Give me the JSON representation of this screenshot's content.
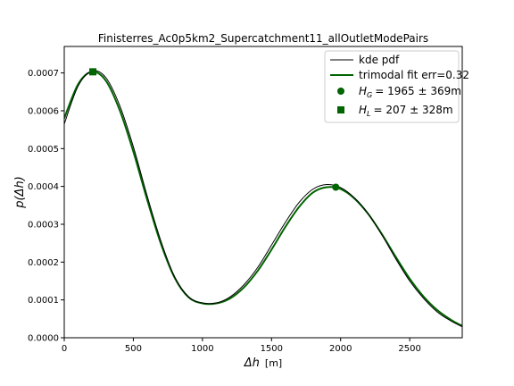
{
  "chart_data": {
    "type": "line",
    "title": "Finisterres_Ac0p5km2_Supercatchment11_allOutletModePairs",
    "xlabel_symbol": "Δh",
    "xlabel_unit": "[m]",
    "ylabel": "p(Δh)",
    "xlim": [
      0,
      2880
    ],
    "ylim": [
      0,
      0.00077
    ],
    "x_ticks": [
      0,
      500,
      1000,
      1500,
      2000,
      2500
    ],
    "x_tick_labels": [
      "0",
      "500",
      "1000",
      "1500",
      "2000",
      "2500"
    ],
    "y_ticks": [
      0,
      0.0001,
      0.0002,
      0.0003,
      0.0004,
      0.0005,
      0.0006,
      0.0007
    ],
    "y_tick_labels": [
      "0.0000",
      "0.0001",
      "0.0002",
      "0.0003",
      "0.0004",
      "0.0005",
      "0.0006",
      "0.0007"
    ],
    "series": [
      {
        "name": "kde pdf",
        "color": "#000000",
        "style": "thin-line",
        "x": [
          0,
          100,
          200,
          300,
          400,
          500,
          600,
          700,
          800,
          900,
          1000,
          1100,
          1200,
          1300,
          1400,
          1500,
          1600,
          1700,
          1800,
          1900,
          2000,
          2100,
          2200,
          2300,
          2400,
          2500,
          2600,
          2700,
          2800,
          2880
        ],
        "y": [
          0.000565,
          0.000665,
          0.000705,
          0.000688,
          0.000615,
          0.000505,
          0.000375,
          0.000255,
          0.00016,
          0.000108,
          9.2e-05,
          9.2e-05,
          0.000108,
          0.00014,
          0.000186,
          0.000245,
          0.000305,
          0.000358,
          0.000393,
          0.000405,
          0.000397,
          0.00037,
          0.000328,
          0.000271,
          0.000208,
          0.00015,
          0.000104,
          6.8e-05,
          4.4e-05,
          2.9e-05
        ]
      },
      {
        "name": "trimodal fit err=0.32",
        "color": "#006400",
        "style": "thick-line",
        "x": [
          0,
          100,
          200,
          300,
          400,
          500,
          600,
          700,
          800,
          900,
          1000,
          1100,
          1200,
          1300,
          1400,
          1500,
          1600,
          1700,
          1800,
          1900,
          2000,
          2100,
          2200,
          2300,
          2400,
          2500,
          2600,
          2700,
          2800,
          2880
        ],
        "y": [
          0.00058,
          0.00067,
          0.000703,
          0.00068,
          0.000603,
          0.000492,
          0.000365,
          0.000248,
          0.000158,
          0.000107,
          9.1e-05,
          9.1e-05,
          0.000104,
          0.000133,
          0.000177,
          0.000233,
          0.000293,
          0.000346,
          0.000384,
          0.000398,
          0.000393,
          0.000368,
          0.000327,
          0.000273,
          0.000213,
          0.000156,
          0.000109,
          7.3e-05,
          4.7e-05,
          3.1e-05
        ]
      }
    ],
    "markers": [
      {
        "name": "H_G",
        "legend_label": "= 1965 ± 369m",
        "shape": "circle",
        "color": "#006400",
        "x": 1965,
        "y": 0.000398
      },
      {
        "name": "H_L",
        "legend_label": "= 207 ± 328m",
        "shape": "square",
        "color": "#006400",
        "x": 207,
        "y": 0.000703
      }
    ],
    "legend_position": "top-right",
    "grid": false
  }
}
